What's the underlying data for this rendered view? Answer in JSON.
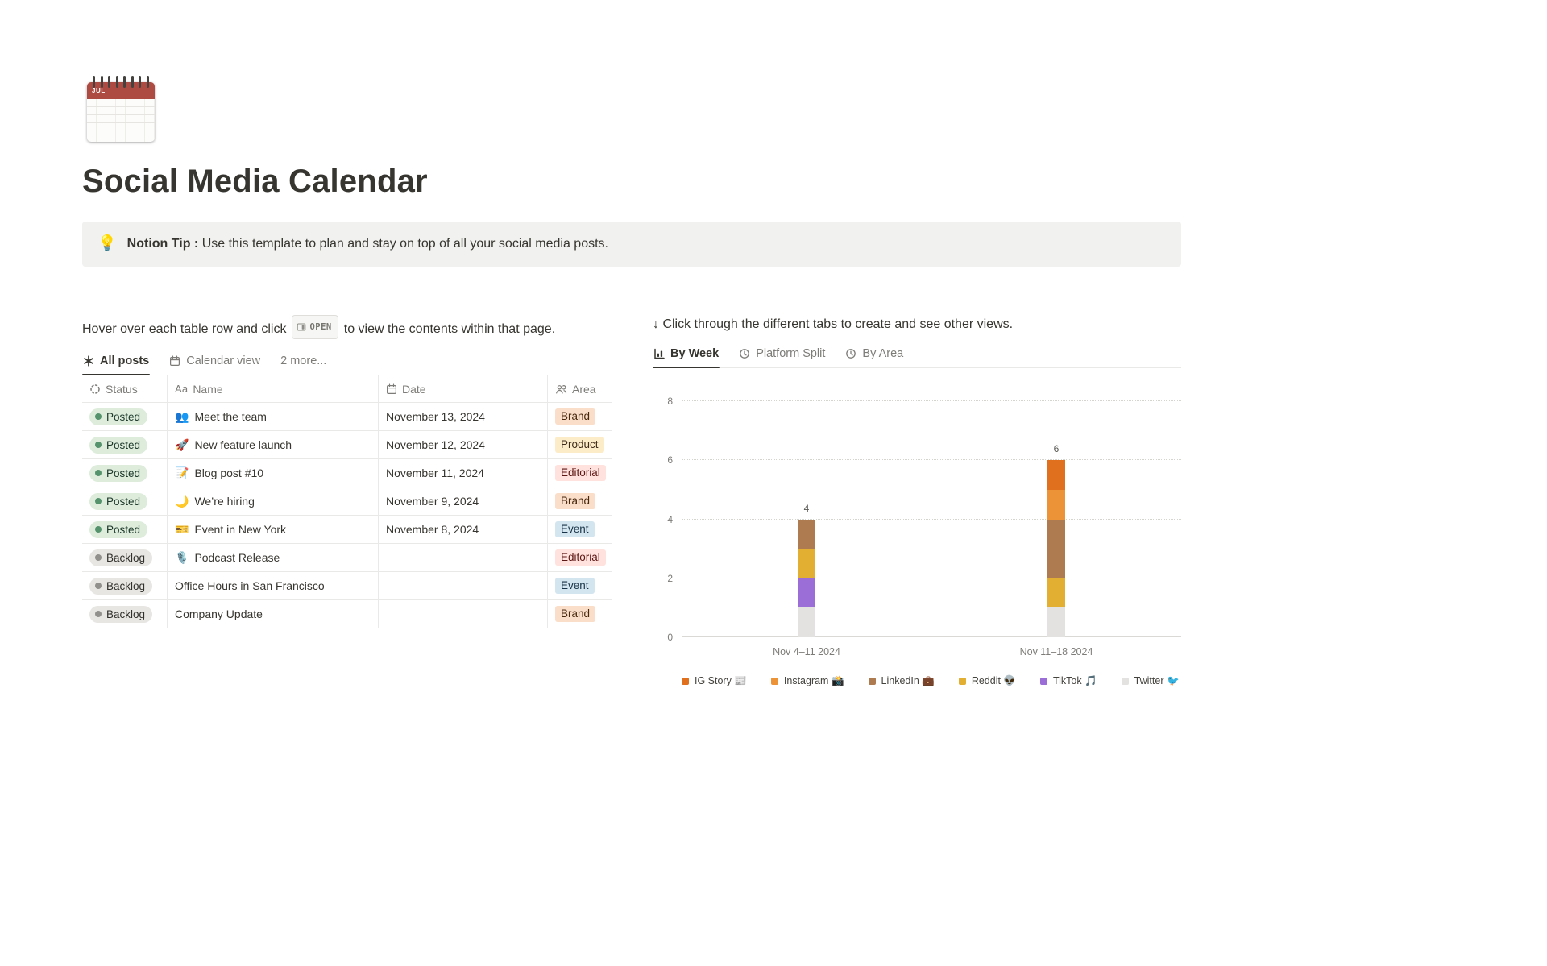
{
  "page": {
    "title": "Social Media Calendar",
    "icon": "tear-off-calendar",
    "icon_label": "JUL"
  },
  "callout": {
    "icon": "💡",
    "bold": "Notion Tip :",
    "text": "Use this template to plan and stay on top of all your social media posts."
  },
  "left": {
    "instruction_pre": "Hover over each table row and click",
    "open_badge": "OPEN",
    "instruction_post": "to view the contents within that page.",
    "tabs": [
      {
        "label": "All posts",
        "icon": "asterisk",
        "active": true
      },
      {
        "label": "Calendar view",
        "icon": "calendar",
        "active": false
      },
      {
        "label": "2 more...",
        "icon": "",
        "active": false
      }
    ],
    "table": {
      "headers": [
        {
          "label": "Status",
          "icon": "status"
        },
        {
          "label": "Name",
          "icon": "Aa"
        },
        {
          "label": "Date",
          "icon": "calendar"
        },
        {
          "label": "Area",
          "icon": "people"
        }
      ],
      "rows": [
        {
          "status": "Posted",
          "status_color": "green",
          "emoji": "👥",
          "name": "Meet the team",
          "date": "November 13, 2024",
          "area": "Brand",
          "area_color": "orange"
        },
        {
          "status": "Posted",
          "status_color": "green",
          "emoji": "🚀",
          "name": "New feature launch",
          "date": "November 12, 2024",
          "area": "Product",
          "area_color": "yellow"
        },
        {
          "status": "Posted",
          "status_color": "green",
          "emoji": "📝",
          "name": "Blog post #10",
          "date": "November 11, 2024",
          "area": "Editorial",
          "area_color": "red"
        },
        {
          "status": "Posted",
          "status_color": "green",
          "emoji": "🌙",
          "name": "We’re hiring",
          "date": "November 9, 2024",
          "area": "Brand",
          "area_color": "orange"
        },
        {
          "status": "Posted",
          "status_color": "green",
          "emoji": "🎫",
          "name": "Event in New York",
          "date": "November 8, 2024",
          "area": "Event",
          "area_color": "blue"
        },
        {
          "status": "Backlog",
          "status_color": "gray",
          "emoji": "🎙️",
          "name": "Podcast Release",
          "date": "",
          "area": "Editorial",
          "area_color": "red"
        },
        {
          "status": "Backlog",
          "status_color": "gray",
          "emoji": "",
          "name": "Office Hours in San Francisco",
          "date": "",
          "area": "Event",
          "area_color": "blue"
        },
        {
          "status": "Backlog",
          "status_color": "gray",
          "emoji": "",
          "name": "Company Update",
          "date": "",
          "area": "Brand",
          "area_color": "orange"
        }
      ]
    }
  },
  "right": {
    "instruction": "↓ Click through the different tabs to create and see other views.",
    "tabs": [
      {
        "label": "By Week",
        "icon": "chart",
        "active": true
      },
      {
        "label": "Platform Split",
        "icon": "clock",
        "active": false
      },
      {
        "label": "By Area",
        "icon": "clock",
        "active": false
      }
    ]
  },
  "chart_data": {
    "type": "bar",
    "stacked": true,
    "title": "",
    "categories": [
      "Nov 4–11 2024",
      "Nov 11–18 2024"
    ],
    "series": [
      {
        "name": "Twitter 🐦",
        "color": "#E3E2E0",
        "values": [
          1,
          1
        ]
      },
      {
        "name": "TikTok 🎵",
        "color": "#9A6DD7",
        "values": [
          1,
          0
        ]
      },
      {
        "name": "Reddit 👽",
        "color": "#E2AF32",
        "values": [
          1,
          1
        ]
      },
      {
        "name": "LinkedIn 💼",
        "color": "#AE7A50",
        "values": [
          1,
          2
        ]
      },
      {
        "name": "Instagram 📸",
        "color": "#ED9337",
        "values": [
          0,
          1
        ]
      },
      {
        "name": "IG Story 📰",
        "color": "#E0701E",
        "values": [
          0,
          1
        ]
      }
    ],
    "totals": [
      4,
      6
    ],
    "ylim": [
      0,
      8
    ],
    "yticks": [
      0,
      2,
      4,
      6,
      8
    ],
    "grid": "dotted-horizontal",
    "legend_position": "bottom",
    "legend_order": [
      "IG Story 📰",
      "Instagram 📸",
      "LinkedIn 💼",
      "Reddit 👽",
      "TikTok 🎵",
      "Twitter 🐦"
    ]
  },
  "colors": {
    "status": {
      "green": {
        "bg": "#DEECDC",
        "dot": "#54936C",
        "text": "#1C3829"
      },
      "gray": {
        "bg": "#E7E6E3",
        "dot": "#91908C",
        "text": "#32302C"
      }
    },
    "area": {
      "orange": {
        "bg": "#FADEC9",
        "text": "#49290E"
      },
      "yellow": {
        "bg": "#FDECC8",
        "text": "#402C1B"
      },
      "red": {
        "bg": "#FFE2DD",
        "text": "#5D1715"
      },
      "blue": {
        "bg": "#D3E5EF",
        "text": "#183347"
      }
    }
  }
}
